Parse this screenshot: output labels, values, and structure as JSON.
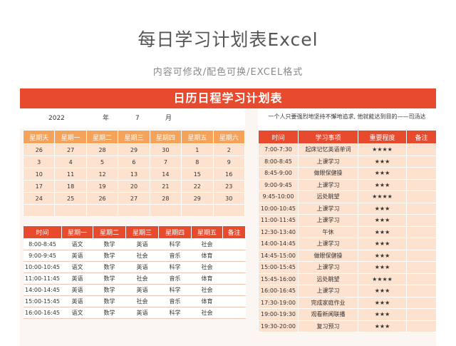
{
  "page": {
    "title": "每日学习计划表Excel",
    "subtitle": "内容可修改/配色可换/EXCEL格式",
    "banner": "日历日程学习计划表",
    "quote": "一个人只要强烈地坚持不懈地追求, 他就能达到目的——司汤达"
  },
  "date": {
    "year": "2022",
    "year_unit": "年",
    "month": "7",
    "month_unit": "月"
  },
  "calendar": {
    "headers": [
      "星期天",
      "星期一",
      "星期二",
      "星期三",
      "星期四",
      "星期五",
      "星期六"
    ],
    "rows": [
      [
        "26",
        "27",
        "28",
        "29",
        "30",
        "1",
        "2"
      ],
      [
        "3",
        "4",
        "5",
        "6",
        "7",
        "8",
        "9"
      ],
      [
        "10",
        "11",
        "12",
        "13",
        "14",
        "15",
        "16"
      ],
      [
        "17",
        "18",
        "19",
        "20",
        "21",
        "22",
        "23"
      ],
      [
        "24",
        "25",
        "26",
        "27",
        "28",
        "29",
        "30"
      ],
      [
        "",
        "",
        "",
        "",
        "",
        "",
        ""
      ]
    ]
  },
  "schedule": {
    "headers": [
      "时间",
      "星期一",
      "星期二",
      "星期三",
      "星期四",
      "星期五",
      "备注"
    ],
    "rows": [
      [
        "8:00-8:45",
        "语文",
        "数学",
        "英语",
        "科学",
        "社会",
        ""
      ],
      [
        "9:00-9:45",
        "英语",
        "数学",
        "社会",
        "音乐",
        "体育",
        ""
      ],
      [
        "10:00-10:45",
        "语文",
        "数学",
        "英语",
        "科学",
        "社会",
        ""
      ],
      [
        "11:00-11:45",
        "英语",
        "数学",
        "社会",
        "音乐",
        "体育",
        ""
      ],
      [
        "14:00-14:45",
        "英语",
        "数学",
        "英语",
        "科学",
        "社会",
        ""
      ],
      [
        "15:00-15:45",
        "英语",
        "数学",
        "社会",
        "音乐",
        "体育",
        ""
      ],
      [
        "16:00-16:45",
        "语文",
        "数学",
        "英语",
        "科学",
        "社会",
        ""
      ]
    ]
  },
  "tasks": {
    "headers": [
      "时间",
      "学习事项",
      "重要程度",
      "备注"
    ],
    "rows": [
      [
        "7:00-7:30",
        "起床记忆英语单词",
        "★★★★",
        ""
      ],
      [
        "8:00-8:45",
        "上课学习",
        "★★★",
        ""
      ],
      [
        "8:45-9:00",
        "做眼保健操",
        "★★★",
        ""
      ],
      [
        "9:00-9:45",
        "上课学习",
        "★★★",
        ""
      ],
      [
        "9:45-10:00",
        "远处眺望",
        "★★★★",
        ""
      ],
      [
        "10:00-10:45",
        "上课学习",
        "★★★",
        ""
      ],
      [
        "11:00-11:45",
        "上课学习",
        "★★★",
        ""
      ],
      [
        "12:30-13:40",
        "午休",
        "★★★",
        ""
      ],
      [
        "14:00-14:45",
        "上课学习",
        "★★★",
        ""
      ],
      [
        "14:45-15:00",
        "做眼保健操",
        "★★★",
        ""
      ],
      [
        "15:00-15:45",
        "上课学习",
        "★★★",
        ""
      ],
      [
        "15:45-16:00",
        "远处眺望",
        "★★★★",
        ""
      ],
      [
        "16:00-16:45",
        "上课学习",
        "★★★",
        ""
      ],
      [
        "17:30-19:00",
        "完成家庭作业",
        "★★★",
        ""
      ],
      [
        "19:00-19:30",
        "观看新闻联播",
        "★★★",
        ""
      ],
      [
        "19:30-20:00",
        "复习预习",
        "★★★",
        ""
      ]
    ]
  },
  "colors": {
    "accent": "#e84a2e",
    "header_orange": "#f5a25a",
    "cell_peach": "#fde2d0"
  }
}
